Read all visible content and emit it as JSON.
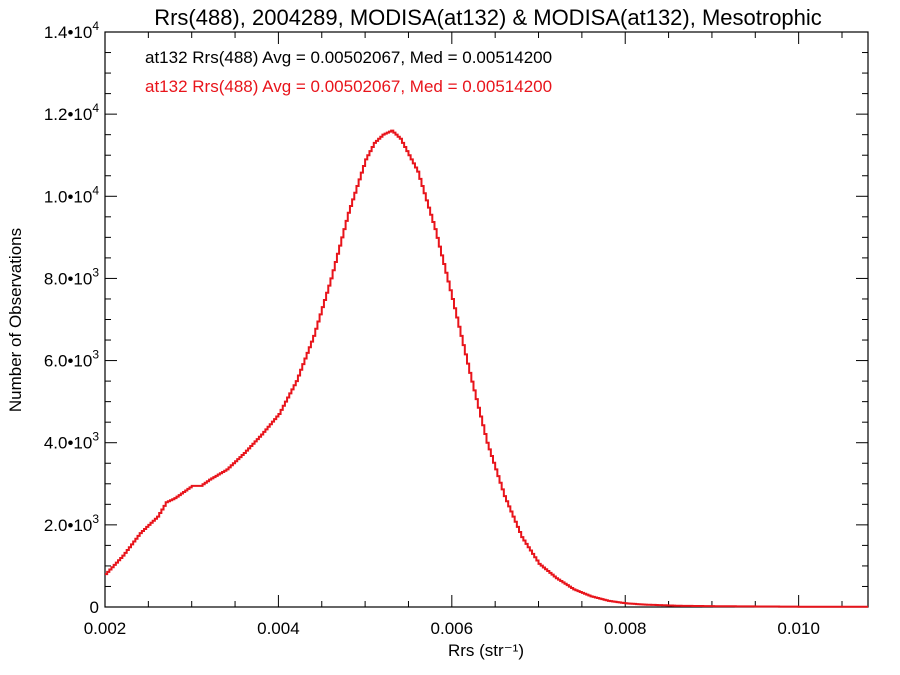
{
  "chart_data": {
    "type": "line",
    "title": "Rrs(488), 2004289, MODISA(at132) & MODISA(at132), Mesotrophic",
    "xlabel": "Rrs (str⁻¹)",
    "ylabel": "Number of Observations",
    "xlim": [
      0.002,
      0.0108
    ],
    "ylim": [
      0,
      14000
    ],
    "grid": false,
    "x_ticks": [
      {
        "value": 0.002,
        "label": "0.002"
      },
      {
        "value": 0.004,
        "label": "0.004"
      },
      {
        "value": 0.006,
        "label": "0.006"
      },
      {
        "value": 0.008,
        "label": "0.008"
      },
      {
        "value": 0.01,
        "label": "0.010"
      }
    ],
    "y_ticks": [
      {
        "value": 0,
        "mant": "0",
        "exp": ""
      },
      {
        "value": 2000,
        "mant": "2.0•10",
        "exp": "3"
      },
      {
        "value": 4000,
        "mant": "4.0•10",
        "exp": "3"
      },
      {
        "value": 6000,
        "mant": "6.0•10",
        "exp": "3"
      },
      {
        "value": 8000,
        "mant": "8.0•10",
        "exp": "3"
      },
      {
        "value": 10000,
        "mant": "1.0•10",
        "exp": "4"
      },
      {
        "value": 12000,
        "mant": "1.2•10",
        "exp": "4"
      },
      {
        "value": 14000,
        "mant": "1.4•10",
        "exp": "4"
      }
    ],
    "annotations": [
      {
        "text": "at132 Rrs(488) Avg = 0.00502067, Med = 0.00514200",
        "color": "#000000"
      },
      {
        "text": "at132 Rrs(488) Avg = 0.00502067, Med = 0.00514200",
        "color": "#e8141b"
      }
    ],
    "series": [
      {
        "color": "#e8141b",
        "style": "step",
        "x": [
          0.002,
          0.0022,
          0.0024,
          0.0026,
          0.0027,
          0.0028,
          0.0029,
          0.003,
          0.0031,
          0.0032,
          0.0034,
          0.0036,
          0.0038,
          0.004,
          0.0042,
          0.0044,
          0.0046,
          0.0048,
          0.005,
          0.0051,
          0.0052,
          0.0053,
          0.0054,
          0.0055,
          0.0056,
          0.0058,
          0.006,
          0.0062,
          0.0064,
          0.0066,
          0.0068,
          0.007,
          0.0072,
          0.0074,
          0.0076,
          0.0078,
          0.008,
          0.0082,
          0.0084,
          0.0086,
          0.0088,
          0.009,
          0.0094,
          0.0098,
          0.0102,
          0.0108
        ],
        "y": [
          800,
          1250,
          1800,
          2200,
          2550,
          2650,
          2800,
          2950,
          2950,
          3100,
          3350,
          3750,
          4200,
          4700,
          5500,
          6600,
          8000,
          9600,
          10900,
          11300,
          11500,
          11600,
          11400,
          11000,
          10600,
          9200,
          7500,
          5700,
          4000,
          2700,
          1700,
          1050,
          700,
          430,
          260,
          150,
          90,
          60,
          45,
          30,
          25,
          20,
          15,
          10,
          5,
          5
        ]
      }
    ]
  }
}
